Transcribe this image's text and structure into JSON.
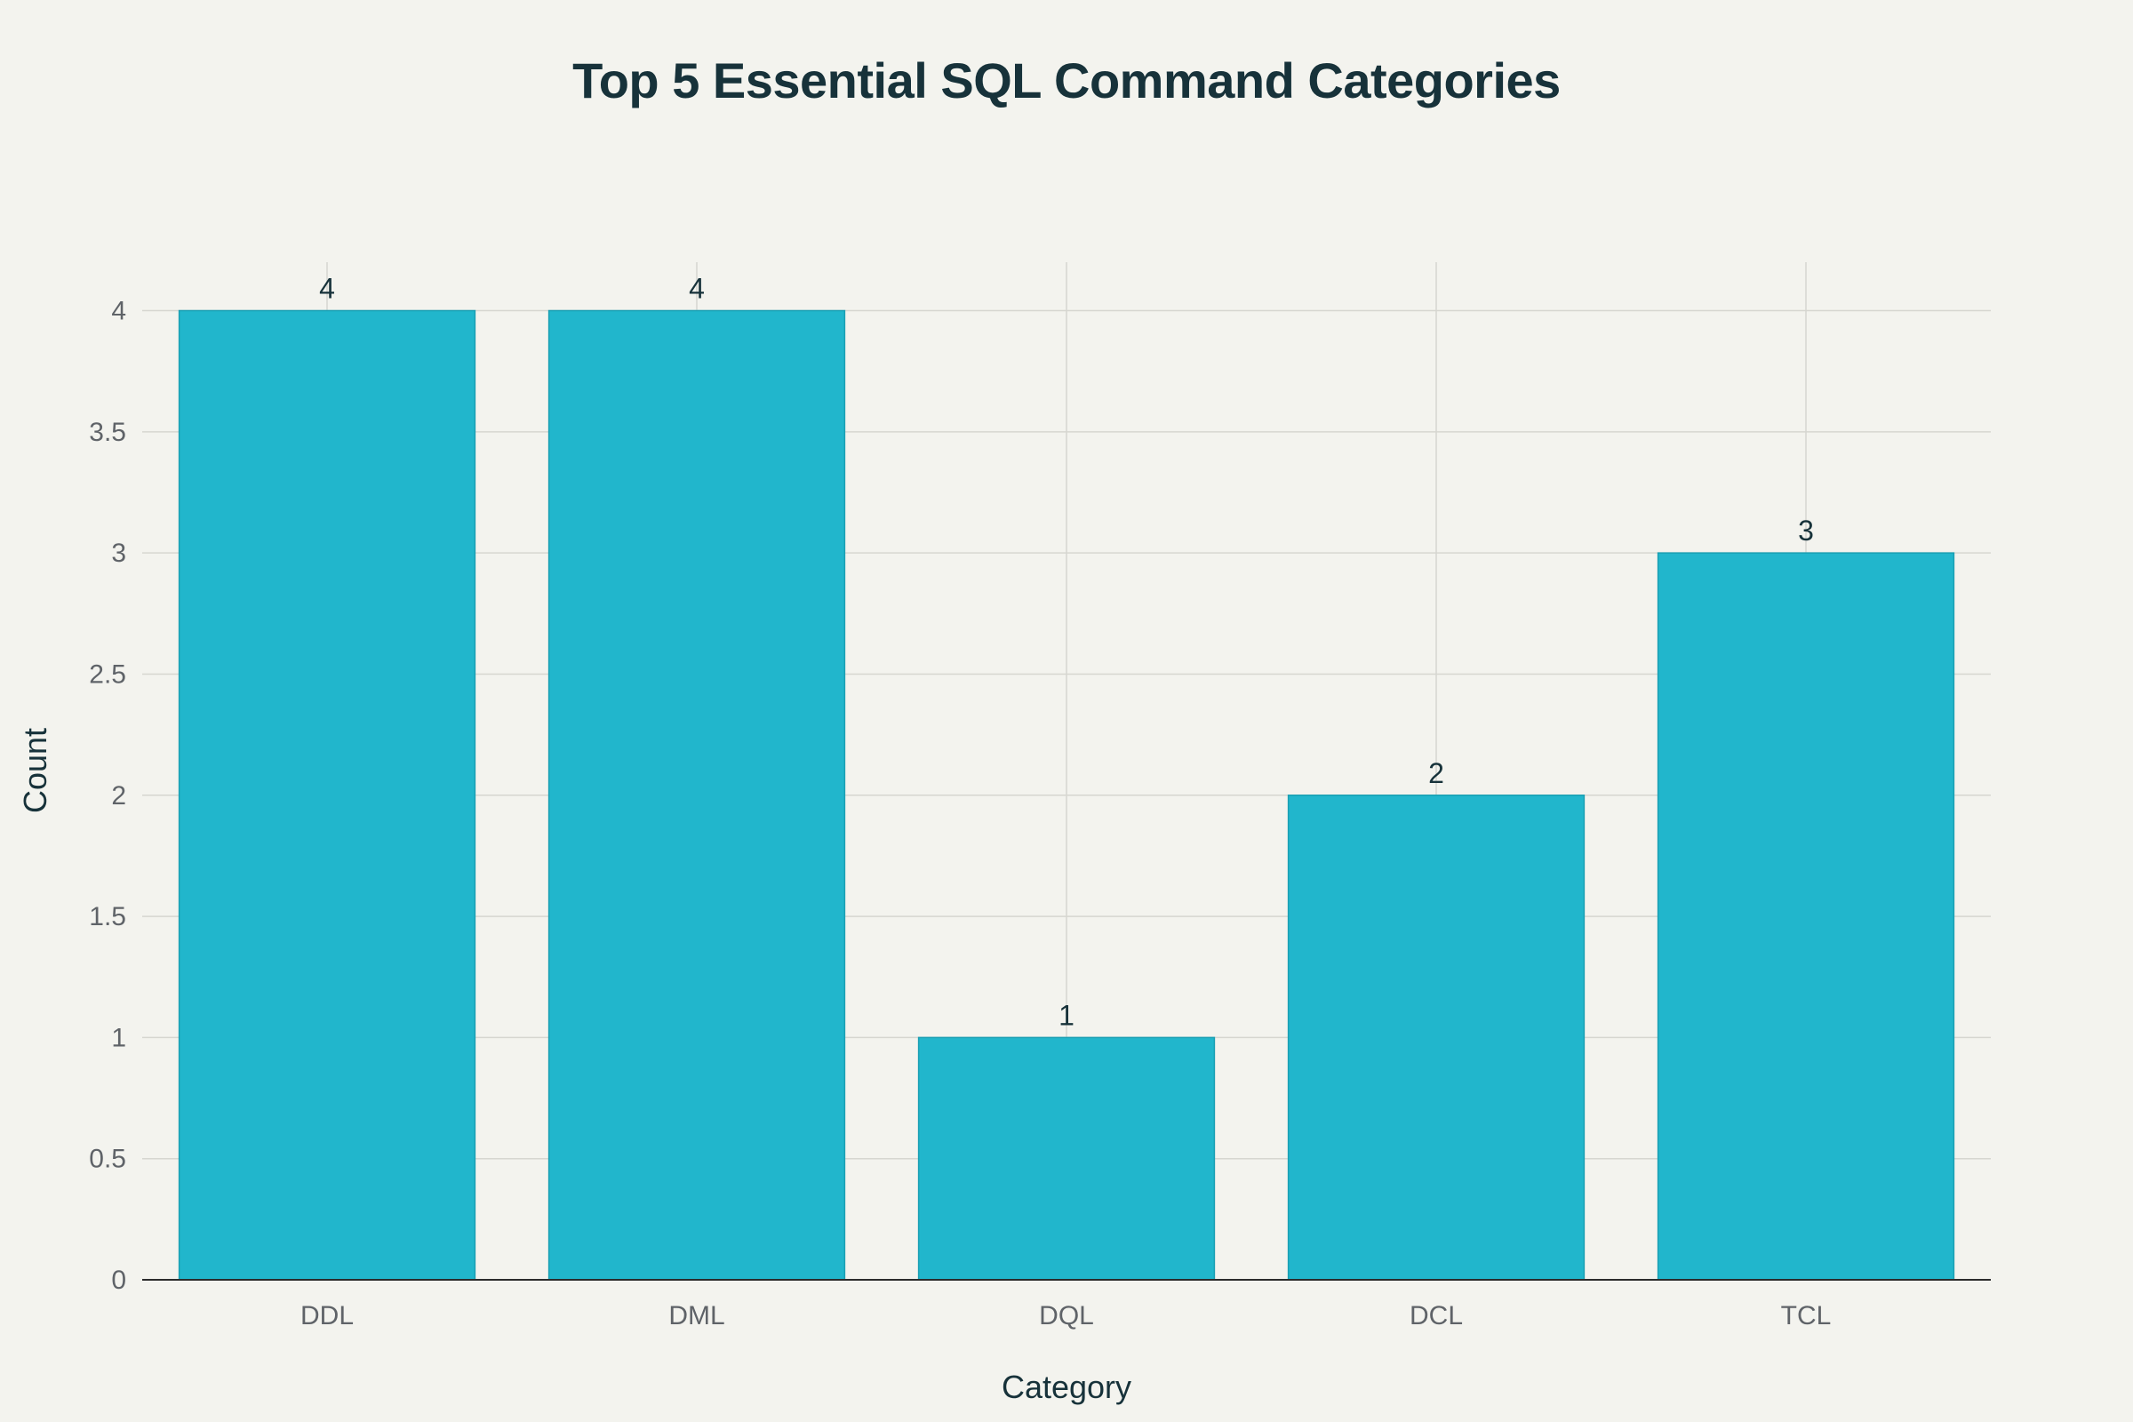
{
  "chart_data": {
    "type": "bar",
    "title": "Top 5 Essential SQL Command Categories",
    "xlabel": "Category",
    "ylabel": "Count",
    "categories": [
      "DDL",
      "DML",
      "DQL",
      "DCL",
      "TCL"
    ],
    "values": [
      4,
      4,
      1,
      2,
      3
    ],
    "data_labels": [
      "4",
      "4",
      "1",
      "2",
      "3"
    ],
    "ylim": [
      0,
      4.2
    ],
    "yticks": [
      0,
      0.5,
      1,
      1.5,
      2,
      2.5,
      3,
      3.5,
      4
    ],
    "ytick_labels": [
      "0",
      "0.5",
      "1",
      "1.5",
      "2",
      "2.5",
      "3",
      "3.5",
      "4"
    ],
    "grid": true,
    "colors": {
      "bar": "#21b6cc",
      "bar_edge": "#1a9fb3",
      "grid": "#d6d6d0",
      "axis": "#2b2b2b",
      "background": "#f3f3ee"
    }
  }
}
